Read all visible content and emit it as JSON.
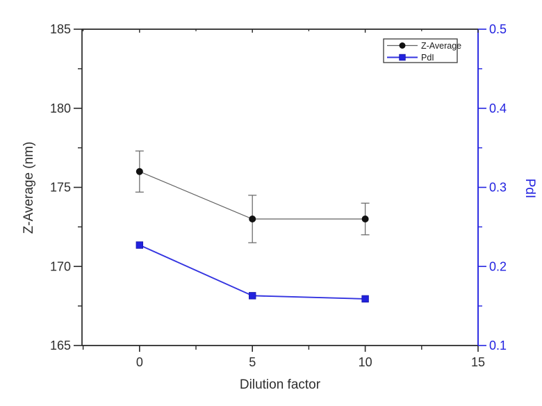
{
  "figure": {
    "background": "#ffffff",
    "description": "Dual-axis line chart of Z-Average and PdI versus dilution factor"
  },
  "chart_data": {
    "type": "line",
    "title": "",
    "x": [
      0,
      5,
      10
    ],
    "series": [
      {
        "name": "Z-Average",
        "axis": "left",
        "values": [
          176,
          173,
          173
        ],
        "errors": [
          1.3,
          1.5,
          1.0
        ],
        "marker": "circle",
        "marker_color": "#111111",
        "line_color": "#606060",
        "error_color": "#6e6e6e",
        "label_color": "#1c1c1c"
      },
      {
        "name": "PdI",
        "axis": "right",
        "values": [
          0.227,
          0.163,
          0.159
        ],
        "errors": [
          0,
          0,
          0
        ],
        "marker": "square",
        "marker_color": "#2222dd",
        "line_color": "#3333e0",
        "error_color": "#3333e0",
        "label_color": "#1c1c1c"
      }
    ],
    "x_axis": {
      "label": "Dilution factor",
      "min": -2.55,
      "max": 15,
      "major_ticks": [
        0,
        5,
        10,
        15
      ],
      "minor_ticks": [
        -2.5,
        2.5,
        7.5,
        12.5
      ],
      "color": "#262626",
      "text_color": "#2e2e2e"
    },
    "y_axis_left": {
      "label": "Z-Average (nm)",
      "min": 165,
      "max": 185,
      "major_ticks": [
        165,
        170,
        175,
        180,
        185
      ],
      "minor_ticks": [
        167.5,
        172.5,
        177.5,
        182.5
      ],
      "color": "#262626",
      "text_color": "#2e2e2e"
    },
    "y_axis_right": {
      "label": "PdI",
      "min": 0.1,
      "max": 0.5,
      "major_ticks": [
        0.1,
        0.2,
        0.3,
        0.4,
        0.5
      ],
      "minor_ticks": [
        0.15,
        0.25,
        0.35,
        0.45
      ],
      "color": "#2323e0",
      "text_color": "#2323e0"
    },
    "legend": {
      "position": "top-right",
      "border_color": "#3a3a3a",
      "entries": [
        "Z-Average",
        "PdI"
      ]
    },
    "grid": false
  }
}
